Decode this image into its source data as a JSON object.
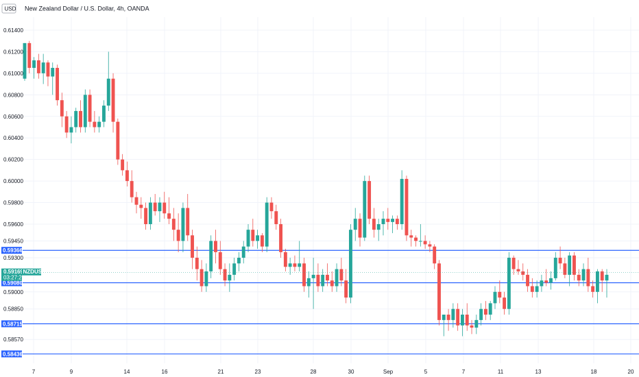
{
  "header": {
    "currency_badge": "USD",
    "title": "New Zealand Dollar / U.S. Dollar, 4h, OANDA"
  },
  "colors": {
    "up": "#26a69a",
    "down": "#ef5350",
    "level_line": "#2962ff",
    "axis_text": "#131722",
    "price_tag": "#26a69a"
  },
  "chart_data": {
    "type": "candlestick",
    "symbol": "NZDUSD",
    "title": "New Zealand Dollar / U.S. Dollar, 4h, OANDA",
    "y_ticks": [
      0.614,
      0.612,
      0.61,
      0.608,
      0.606,
      0.604,
      0.602,
      0.6,
      0.598,
      0.596,
      0.5945,
      0.593,
      0.59,
      0.5885,
      0.5857
    ],
    "y_tick_labels": [
      "0.61400",
      "0.61200",
      "0.61000",
      "0.60800",
      "0.60600",
      "0.60400",
      "0.60200",
      "0.60000",
      "0.59800",
      "0.59600",
      "0.59450",
      "0.59300",
      "0.59000",
      "0.58850",
      "0.58570"
    ],
    "x_tick_labels": [
      "7",
      "9",
      "14",
      "16",
      "21",
      "23",
      "28",
      "30",
      "Sep",
      "5",
      "7",
      "11",
      "13",
      "18",
      "20"
    ],
    "last_price": 0.59169,
    "countdown": "03:27:24",
    "levels": [
      0.59366,
      0.5908,
      0.58715,
      0.58436
    ],
    "level_labels": [
      "0.59366",
      "0.59080",
      "0.58715",
      "0.58436"
    ],
    "candles": [
      [
        0.6095,
        0.6128,
        0.6093,
        0.6128
      ],
      [
        0.6128,
        0.613,
        0.61,
        0.6105
      ],
      [
        0.6105,
        0.6115,
        0.6095,
        0.6112
      ],
      [
        0.6112,
        0.6118,
        0.6095,
        0.61
      ],
      [
        0.61,
        0.6118,
        0.609,
        0.611
      ],
      [
        0.611,
        0.6112,
        0.6088,
        0.6097
      ],
      [
        0.6097,
        0.611,
        0.608,
        0.6105
      ],
      [
        0.6105,
        0.6108,
        0.607,
        0.6075
      ],
      [
        0.6075,
        0.6082,
        0.605,
        0.606
      ],
      [
        0.606,
        0.6065,
        0.604,
        0.6045
      ],
      [
        0.6045,
        0.606,
        0.6035,
        0.605
      ],
      [
        0.605,
        0.6068,
        0.6045,
        0.6065
      ],
      [
        0.6065,
        0.6075,
        0.6045,
        0.605
      ],
      [
        0.605,
        0.6085,
        0.6045,
        0.608
      ],
      [
        0.608,
        0.6085,
        0.605,
        0.6055
      ],
      [
        0.6055,
        0.6065,
        0.6045,
        0.605
      ],
      [
        0.605,
        0.606,
        0.6045,
        0.6055
      ],
      [
        0.6055,
        0.6075,
        0.605,
        0.607
      ],
      [
        0.607,
        0.612,
        0.6065,
        0.6095
      ],
      [
        0.6095,
        0.61,
        0.6045,
        0.6055
      ],
      [
        0.6055,
        0.6058,
        0.6015,
        0.602
      ],
      [
        0.602,
        0.6025,
        0.6005,
        0.601
      ],
      [
        0.601,
        0.6018,
        0.5995,
        0.6
      ],
      [
        0.6,
        0.601,
        0.598,
        0.5985
      ],
      [
        0.5985,
        0.599,
        0.597,
        0.5978
      ],
      [
        0.5978,
        0.5985,
        0.5965,
        0.5975
      ],
      [
        0.5975,
        0.598,
        0.5955,
        0.596
      ],
      [
        0.596,
        0.5985,
        0.5955,
        0.598
      ],
      [
        0.598,
        0.5988,
        0.5968,
        0.5972
      ],
      [
        0.5972,
        0.5985,
        0.5962,
        0.598
      ],
      [
        0.598,
        0.599,
        0.5965,
        0.597
      ],
      [
        0.597,
        0.5985,
        0.596,
        0.5965
      ],
      [
        0.5965,
        0.5975,
        0.5945,
        0.5955
      ],
      [
        0.5955,
        0.597,
        0.5935,
        0.5945
      ],
      [
        0.5945,
        0.598,
        0.5935,
        0.5975
      ],
      [
        0.5975,
        0.5988,
        0.5945,
        0.595
      ],
      [
        0.595,
        0.5955,
        0.592,
        0.593
      ],
      [
        0.593,
        0.594,
        0.591,
        0.592
      ],
      [
        0.592,
        0.5928,
        0.59,
        0.5905
      ],
      [
        0.5905,
        0.5925,
        0.59,
        0.5918
      ],
      [
        0.5918,
        0.595,
        0.5912,
        0.5945
      ],
      [
        0.5945,
        0.5955,
        0.5925,
        0.5935
      ],
      [
        0.5935,
        0.5945,
        0.5915,
        0.592
      ],
      [
        0.592,
        0.5925,
        0.5905,
        0.591
      ],
      [
        0.591,
        0.5925,
        0.59,
        0.5915
      ],
      [
        0.5915,
        0.593,
        0.591,
        0.5925
      ],
      [
        0.5925,
        0.5935,
        0.5918,
        0.593
      ],
      [
        0.593,
        0.5945,
        0.5925,
        0.594
      ],
      [
        0.594,
        0.596,
        0.5935,
        0.5955
      ],
      [
        0.5955,
        0.5965,
        0.594,
        0.5945
      ],
      [
        0.5945,
        0.5955,
        0.5938,
        0.595
      ],
      [
        0.595,
        0.5952,
        0.5935,
        0.594
      ],
      [
        0.594,
        0.5985,
        0.5935,
        0.598
      ],
      [
        0.598,
        0.5985,
        0.5965,
        0.5972
      ],
      [
        0.5972,
        0.5978,
        0.5955,
        0.596
      ],
      [
        0.596,
        0.5965,
        0.593,
        0.5935
      ],
      [
        0.5935,
        0.5938,
        0.5918,
        0.5922
      ],
      [
        0.5922,
        0.593,
        0.5915,
        0.5925
      ],
      [
        0.5925,
        0.5932,
        0.5918,
        0.5922
      ],
      [
        0.5922,
        0.5945,
        0.5918,
        0.5925
      ],
      [
        0.5925,
        0.593,
        0.59,
        0.5905
      ],
      [
        0.5905,
        0.5918,
        0.5895,
        0.5912
      ],
      [
        0.5912,
        0.593,
        0.5885,
        0.5915
      ],
      [
        0.5915,
        0.5925,
        0.59,
        0.5905
      ],
      [
        0.5905,
        0.592,
        0.59,
        0.5915
      ],
      [
        0.5915,
        0.5925,
        0.5905,
        0.591
      ],
      [
        0.591,
        0.5918,
        0.59,
        0.5905
      ],
      [
        0.5905,
        0.5925,
        0.59,
        0.592
      ],
      [
        0.592,
        0.593,
        0.5905,
        0.591
      ],
      [
        0.591,
        0.592,
        0.589,
        0.5895
      ],
      [
        0.5895,
        0.596,
        0.589,
        0.5955
      ],
      [
        0.5955,
        0.5975,
        0.5945,
        0.5965
      ],
      [
        0.5965,
        0.597,
        0.594,
        0.5948
      ],
      [
        0.5948,
        0.6005,
        0.5945,
        0.6
      ],
      [
        0.6,
        0.6005,
        0.596,
        0.5965
      ],
      [
        0.5965,
        0.5975,
        0.5948,
        0.5955
      ],
      [
        0.5955,
        0.5965,
        0.5945,
        0.596
      ],
      [
        0.596,
        0.5972,
        0.595,
        0.5965
      ],
      [
        0.5965,
        0.5975,
        0.5955,
        0.5962
      ],
      [
        0.5962,
        0.5968,
        0.5952,
        0.5965
      ],
      [
        0.5965,
        0.5968,
        0.5955,
        0.596
      ],
      [
        0.596,
        0.601,
        0.5955,
        0.6002
      ],
      [
        0.6002,
        0.6005,
        0.5945,
        0.595
      ],
      [
        0.595,
        0.5955,
        0.594,
        0.5948
      ],
      [
        0.5948,
        0.595,
        0.594,
        0.5945
      ],
      [
        0.5945,
        0.596,
        0.594,
        0.5945
      ],
      [
        0.5945,
        0.595,
        0.5938,
        0.5942
      ],
      [
        0.5942,
        0.5945,
        0.5935,
        0.594
      ],
      [
        0.594,
        0.5942,
        0.592,
        0.5925
      ],
      [
        0.5925,
        0.5928,
        0.587,
        0.5875
      ],
      [
        0.5875,
        0.588,
        0.586,
        0.588
      ],
      [
        0.588,
        0.5885,
        0.5865,
        0.5875
      ],
      [
        0.5875,
        0.589,
        0.5868,
        0.5885
      ],
      [
        0.5885,
        0.589,
        0.5865,
        0.587
      ],
      [
        0.587,
        0.5885,
        0.586,
        0.588
      ],
      [
        0.588,
        0.589,
        0.5865,
        0.587
      ],
      [
        0.587,
        0.5875,
        0.5862,
        0.5868
      ],
      [
        0.5868,
        0.588,
        0.5862,
        0.5875
      ],
      [
        0.5875,
        0.589,
        0.587,
        0.5885
      ],
      [
        0.5885,
        0.5892,
        0.5875,
        0.588
      ],
      [
        0.588,
        0.5892,
        0.5875,
        0.589
      ],
      [
        0.589,
        0.5905,
        0.5885,
        0.59
      ],
      [
        0.59,
        0.591,
        0.589,
        0.5895
      ],
      [
        0.5895,
        0.59,
        0.588,
        0.5885
      ],
      [
        0.5885,
        0.5935,
        0.588,
        0.593
      ],
      [
        0.593,
        0.5932,
        0.5915,
        0.592
      ],
      [
        0.592,
        0.5928,
        0.5915,
        0.5918
      ],
      [
        0.5918,
        0.5925,
        0.591,
        0.5915
      ],
      [
        0.5915,
        0.592,
        0.59,
        0.5905
      ],
      [
        0.5905,
        0.5912,
        0.5895,
        0.59
      ],
      [
        0.59,
        0.591,
        0.5895,
        0.5905
      ],
      [
        0.5905,
        0.5915,
        0.59,
        0.591
      ],
      [
        0.591,
        0.592,
        0.5905,
        0.5908
      ],
      [
        0.5908,
        0.5918,
        0.5902,
        0.5912
      ],
      [
        0.5912,
        0.5935,
        0.591,
        0.593
      ],
      [
        0.593,
        0.594,
        0.592,
        0.5925
      ],
      [
        0.5925,
        0.593,
        0.5912,
        0.5915
      ],
      [
        0.5915,
        0.5935,
        0.5905,
        0.5932
      ],
      [
        0.5932,
        0.5935,
        0.591,
        0.5915
      ],
      [
        0.5915,
        0.592,
        0.5905,
        0.591
      ],
      [
        0.591,
        0.5925,
        0.5905,
        0.592
      ],
      [
        0.592,
        0.593,
        0.59,
        0.5905
      ],
      [
        0.5905,
        0.591,
        0.5895,
        0.59
      ],
      [
        0.59,
        0.592,
        0.589,
        0.5918
      ],
      [
        0.5918,
        0.592,
        0.59,
        0.591
      ],
      [
        0.591,
        0.592,
        0.5895,
        0.5915
      ]
    ]
  }
}
